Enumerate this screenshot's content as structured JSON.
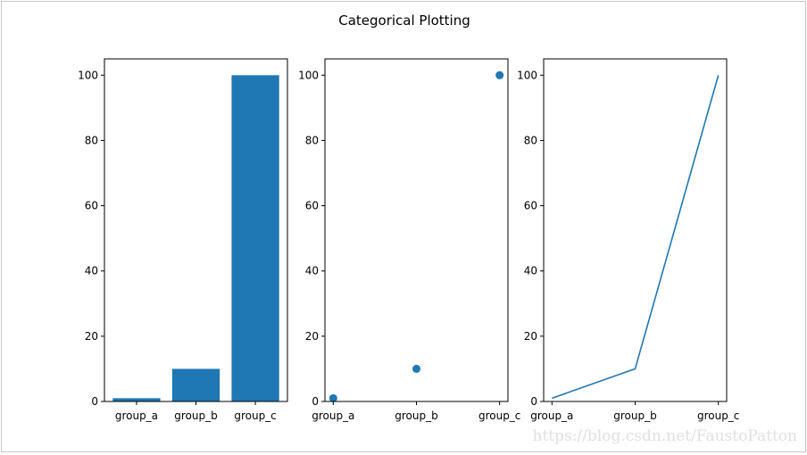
{
  "watermark": "https://blog.csdn.net/FaustoPatton",
  "chart_data": {
    "title": "Categorical Plotting",
    "categories": [
      "group_a",
      "group_b",
      "group_c"
    ],
    "values": [
      1,
      10,
      100
    ],
    "color": "#1f77b4",
    "ylim": [
      0,
      105
    ],
    "yticks": [
      0,
      20,
      40,
      60,
      80,
      100
    ],
    "grid": false,
    "subplots": [
      {
        "type": "bar",
        "xlabel": "",
        "ylabel": ""
      },
      {
        "type": "scatter",
        "xlabel": "",
        "ylabel": ""
      },
      {
        "type": "line",
        "xlabel": "",
        "ylabel": ""
      }
    ]
  }
}
